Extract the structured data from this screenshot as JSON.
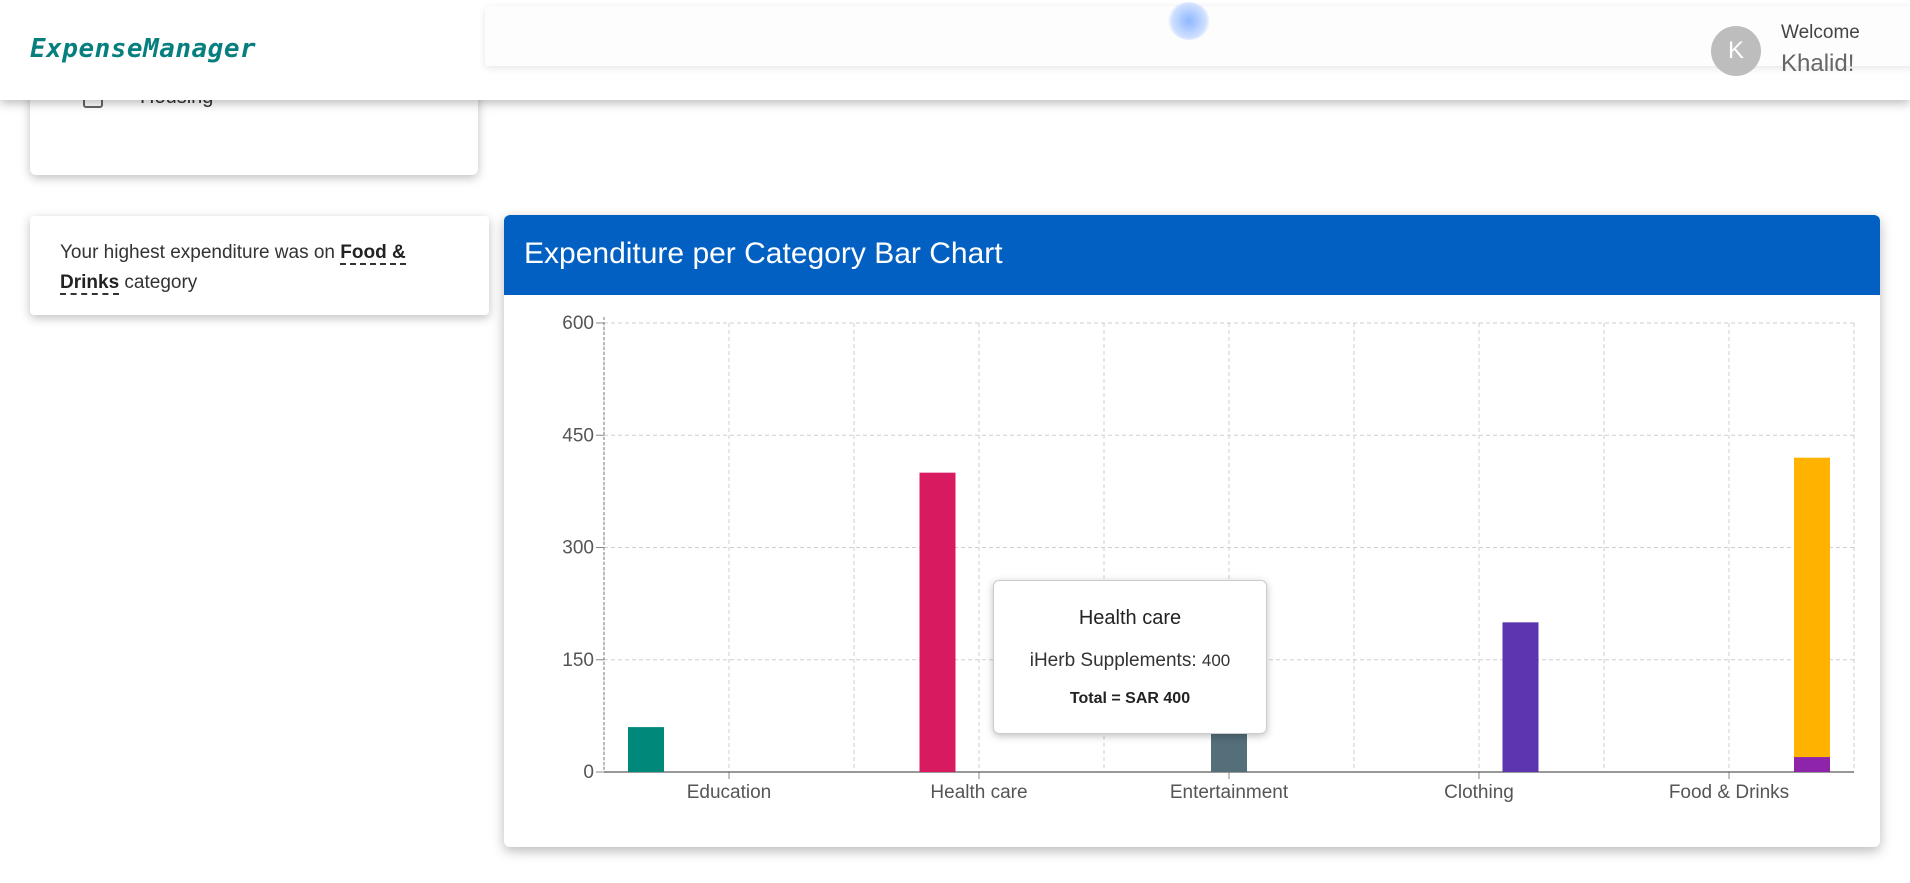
{
  "app": {
    "logo": "ExpenseManager",
    "avatar_initial": "K",
    "welcome": "Welcome",
    "username": "Khalid!"
  },
  "categories_card": {
    "visible_item": "Housing"
  },
  "highest": {
    "prefix": "Your highest expenditure was on",
    "category": "Food & Drinks",
    "suffix": "category"
  },
  "chart_card": {
    "title": "Expenditure per Category Bar Chart",
    "header_color": "#0260c2"
  },
  "tooltip": {
    "title": "Health care",
    "item_label": "iHerb Supplements:",
    "item_value": "400",
    "total": "Total = SAR 400"
  },
  "chart_data": {
    "type": "bar",
    "stacked": true,
    "categories": [
      "Education",
      "Health care",
      "Entertainment",
      "Clothing",
      "Food & Drinks"
    ],
    "ylim": [
      0,
      600
    ],
    "yticks": [
      0,
      150,
      300,
      450,
      600
    ],
    "grid": true,
    "bars": [
      {
        "category": "Education",
        "slot": 0,
        "segments": [
          {
            "value": 60,
            "color": "#00897b"
          }
        ]
      },
      {
        "category": "Health care",
        "slot": 1,
        "segments": [
          {
            "value": 400,
            "color": "#d81b60"
          }
        ]
      },
      {
        "category": "Entertainment",
        "slot": 2,
        "segments": [
          {
            "value": 60,
            "color": "#546e7a"
          }
        ]
      },
      {
        "category": "Clothing",
        "slot": 3,
        "segments": [
          {
            "value": 200,
            "color": "#5e35b1"
          }
        ]
      },
      {
        "category": "Food & Drinks",
        "slot": 4,
        "segments": [
          {
            "value": 20,
            "color": "#8e24aa"
          },
          {
            "value": 400,
            "color": "#ffb300"
          }
        ]
      }
    ]
  }
}
